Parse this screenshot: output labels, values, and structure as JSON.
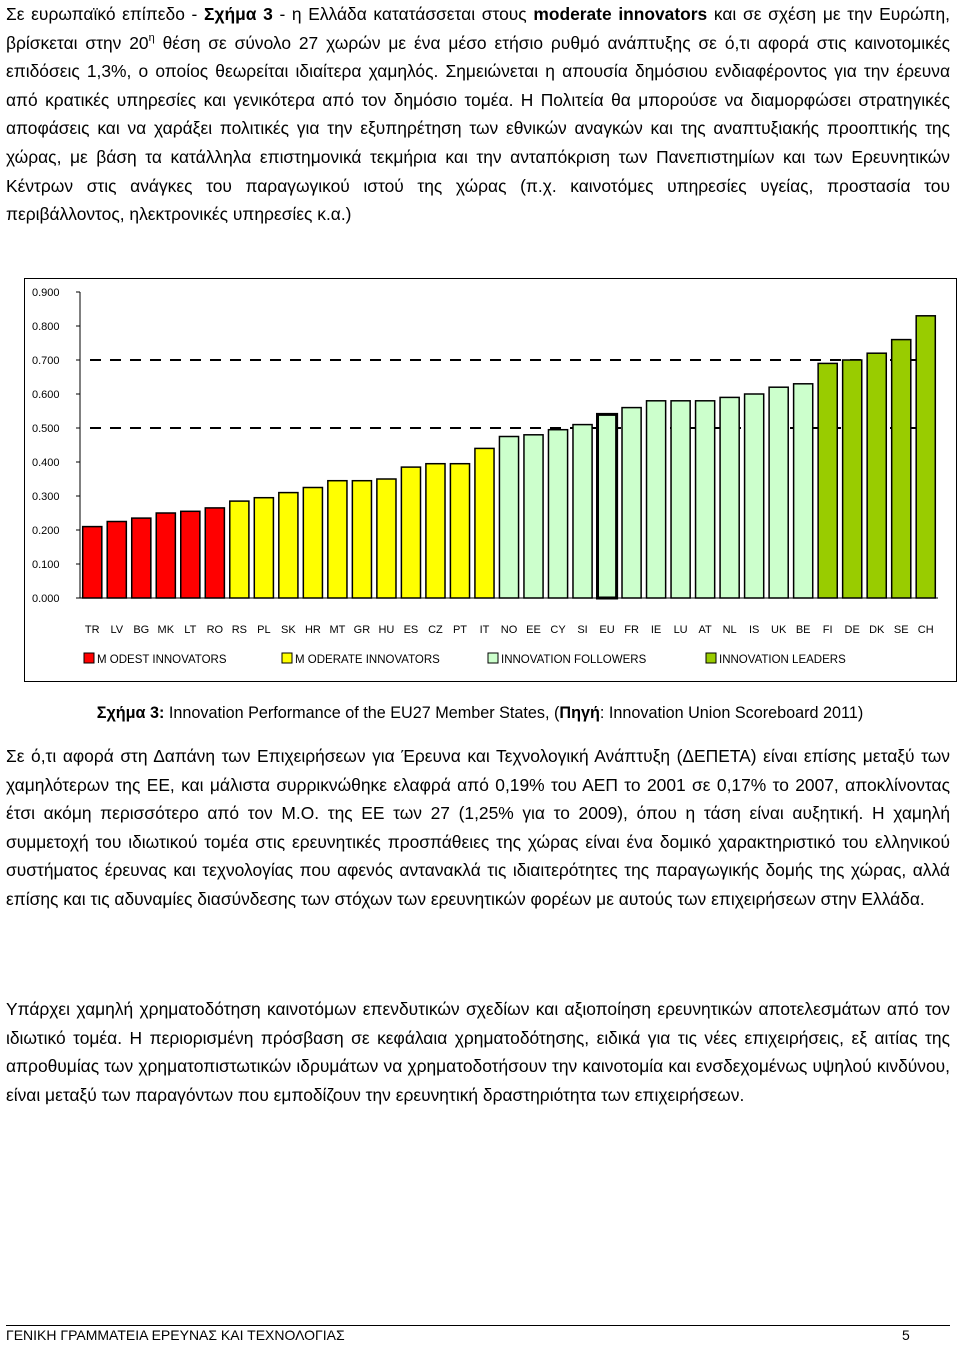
{
  "paragraph1": {
    "s1": "Σε ευρωπαϊκό επίπεδο - ",
    "s2": "Σχήμα 3",
    "s3": " - η Ελλάδα κατατάσσεται στους ",
    "s4": "moderate innovators",
    "s5": " και σε σχέση με την Ευρώπη, βρίσκεται στην 20",
    "s6": "η",
    "s7": " θέση σε σύνολο 27 χωρών με ένα μέσο ετήσιο ρυθμό ανάπτυξης σε ό,τι αφορά στις καινοτομικές επιδόσεις 1,3%, ο οποίος θεωρείται ιδιαίτερα χαμηλός. Σημειώνεται η απουσία δημόσιου ενδιαφέροντος για την έρευνα από κρατικές υπηρεσίες και γενικότερα από τον δημόσιο τομέα. Η Πολιτεία θα μπορούσε να διαμορφώσει στρατηγικές αποφάσεις και να χαράξει πολιτικές για την εξυπηρέτηση των εθνικών αναγκών και της αναπτυξιακής προοπτικής της χώρας, με βάση τα κατάλληλα επιστημονικά τεκμήρια και την ανταπόκριση των Πανεπιστημίων και των Ερευνητικών Κέντρων στις ανάγκες του παραγωγικού ιστού της χώρας (π.χ. καινοτόμες υπηρεσίες υγείας, προστασία του περιβάλλοντος, ηλεκτρονικές υπηρεσίες κ.α.)"
  },
  "chart_data": {
    "type": "bar",
    "title": "",
    "xlabel": "",
    "ylabel": "",
    "ylim": [
      0,
      0.9
    ],
    "yticks": [
      "0.000",
      "0.100",
      "0.200",
      "0.300",
      "0.400",
      "0.500",
      "0.600",
      "0.700",
      "0.800",
      "0.900"
    ],
    "grid": false,
    "legend_position": "bottom",
    "categories": [
      "TR",
      "LV",
      "BG",
      "MK",
      "LT",
      "RO",
      "RS",
      "PL",
      "SK",
      "HR",
      "MT",
      "GR",
      "HU",
      "ES",
      "CZ",
      "PT",
      "IT",
      "NO",
      "EE",
      "CY",
      "SI",
      "EU",
      "FR",
      "IE",
      "LU",
      "AT",
      "NL",
      "IS",
      "UK",
      "BE",
      "FI",
      "DE",
      "DK",
      "SE",
      "CH"
    ],
    "values": [
      0.21,
      0.225,
      0.235,
      0.25,
      0.255,
      0.265,
      0.285,
      0.295,
      0.31,
      0.325,
      0.345,
      0.345,
      0.35,
      0.385,
      0.395,
      0.395,
      0.44,
      0.475,
      0.48,
      0.495,
      0.51,
      0.54,
      0.56,
      0.58,
      0.58,
      0.58,
      0.59,
      0.6,
      0.62,
      0.63,
      0.69,
      0.7,
      0.72,
      0.76,
      0.83
    ],
    "groups": [
      "modest",
      "modest",
      "modest",
      "modest",
      "modest",
      "modest",
      "moderate",
      "moderate",
      "moderate",
      "moderate",
      "moderate",
      "moderate",
      "moderate",
      "moderate",
      "moderate",
      "moderate",
      "moderate",
      "follower",
      "follower",
      "follower",
      "follower",
      "follower",
      "follower",
      "follower",
      "follower",
      "follower",
      "follower",
      "follower",
      "follower",
      "follower",
      "leader",
      "leader",
      "leader",
      "leader",
      "leader"
    ],
    "highlight": "EU",
    "reference_lines": [
      0.5,
      0.7
    ],
    "legend": [
      {
        "key": "modest",
        "label": "M ODEST INNOVATORS",
        "color": "#ff0000"
      },
      {
        "key": "moderate",
        "label": "M ODERATE INNOVATORS",
        "color": "#ffff00"
      },
      {
        "key": "follower",
        "label": "INNOVATION FOLLOWERS",
        "color": "#ccffcc"
      },
      {
        "key": "leader",
        "label": "INNOVATION LEADERS",
        "color": "#99cc00"
      }
    ]
  },
  "caption": {
    "label": "Σχήμα 3:",
    "text": " Innovation Performance of the EU27 Member States, (",
    "source_label": "Πηγή",
    "source_text": ": Innovation Union Scoreboard 2011)"
  },
  "paragraph2": {
    "text": "Σε ό,τι αφορά στη Δαπάνη των Επιχειρήσεων για Έρευνα και Τεχνολογική Ανάπτυξη (ΔΕΠΕΤΑ) είναι επίσης μεταξύ των χαμηλότερων της ΕΕ, και μάλιστα συρρικνώθηκε ελαφρά από 0,19% του ΑΕΠ το 2001 σε 0,17% το 2007, αποκλίνοντας έτσι ακόμη περισσότερο από τον Μ.Ο. της ΕΕ των 27 (1,25% για το 2009), όπου η τάση είναι αυξητική. Η χαμηλή συμμετοχή του ιδιωτικού τομέα στις ερευνητικές προσπάθειες της χώρας είναι ένα δομικό χαρακτηριστικό του ελληνικού συστήματος έρευνας και τεχνολογίας που αφενός αντανακλά τις ιδιαιτερότητες της παραγωγικής δομής της χώρας, αλλά επίσης και τις αδυναμίες διασύνδεσης των στόχων των ερευνητικών φορέων με αυτούς των επιχειρήσεων στην Ελλάδα."
  },
  "paragraph3": {
    "text": "Υπάρχει χαμηλή χρηματοδότηση καινοτόμων επενδυτικών σχεδίων και αξιοποίηση ερευνητικών αποτελεσμάτων από τον ιδιωτικό τομέα. Η περιορισμένη πρόσβαση σε κεφάλαια χρηματοδότησης, ειδικά για τις νέες επιχειρήσεις, εξ αιτίας της απροθυμίας των χρηματοπιστωτικών ιδρυμάτων να χρηματοδοτήσουν την καινοτομία και ενσδεχομένως υψηλού κινδύνου, είναι μεταξύ των παραγόντων που εμποδίζουν την ερευνητική δραστηριότητα των επιχειρήσεων."
  },
  "footer": {
    "left": "ΓΕΝΙΚΗ ΓΡΑΜΜΑΤΕΙΑ ΕΡΕΥΝΑΣ ΚΑΙ ΤΕΧΝΟΛΟΓΙΑΣ",
    "page_number": "5"
  }
}
